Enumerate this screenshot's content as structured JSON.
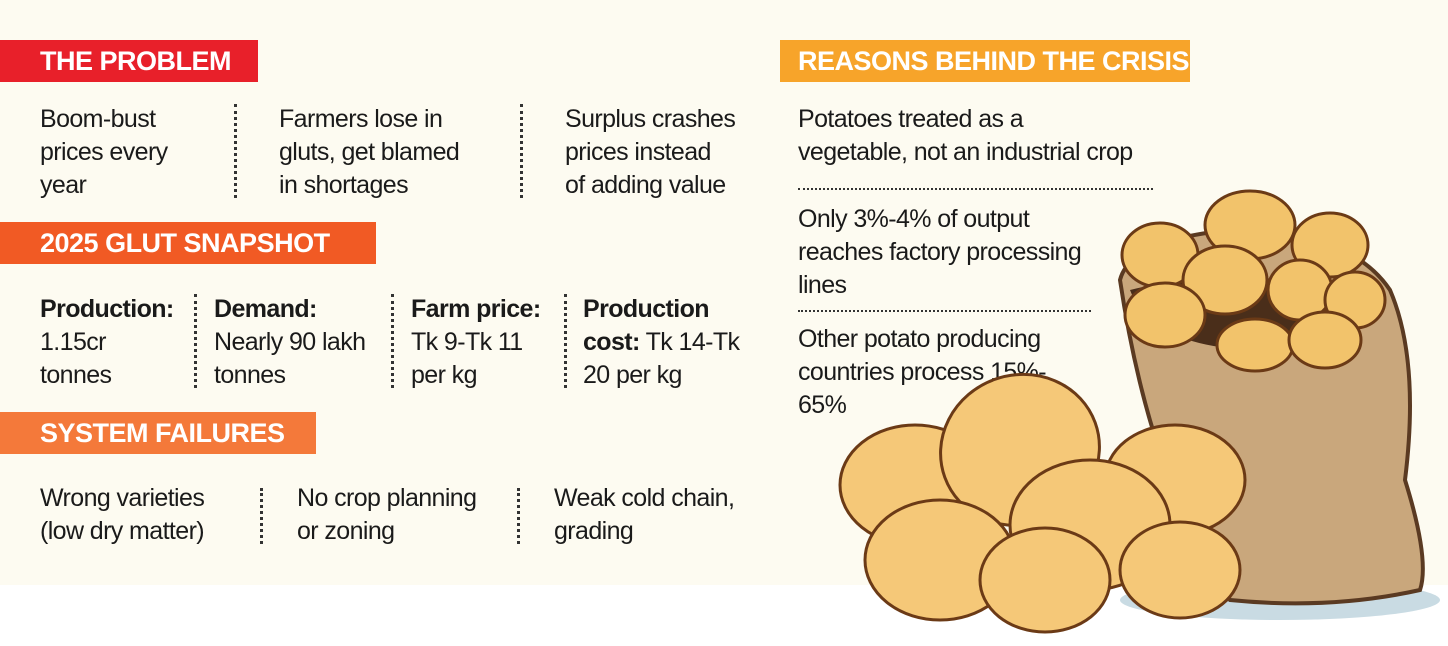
{
  "problem": {
    "title": "THE PROBLEM",
    "items": [
      "Boom-bust\nprices every\nyear",
      "Farmers lose in\ngluts, get blamed\nin shortages",
      "Surplus crashes\nprices instead\nof adding value"
    ]
  },
  "snapshot": {
    "title": "2025 GLUT SNAPSHOT",
    "items": [
      {
        "label": "Production:",
        "value": "1.15cr\ntonnes"
      },
      {
        "label": "Demand:",
        "value": "Nearly 90 lakh\ntonnes"
      },
      {
        "label": "Farm price:",
        "value": "Tk 9-Tk 11\nper kg"
      },
      {
        "label": "Production\ncost:",
        "value": " Tk 14-Tk\n20 per kg"
      }
    ]
  },
  "failures": {
    "title": "SYSTEM FAILURES",
    "items": [
      "Wrong varieties\n(low dry matter)",
      "No crop planning\nor zoning",
      "Weak cold chain,\ngrading"
    ]
  },
  "reasons": {
    "title": "REASONS BEHIND THE CRISIS",
    "items": [
      "Potatoes treated as a\nvegetable, not an industrial crop",
      "Only 3%-4% of output\nreaches factory processing\nlines",
      "Other potato producing\ncountries process 15%-\n65%"
    ]
  },
  "colors": {
    "problem": "#e8202a",
    "snapshot": "#f15a24",
    "failures": "#f4793a",
    "reasons": "#f7a42a",
    "background": "#fdfbf1"
  },
  "illustration": "potato-sack-illustration"
}
